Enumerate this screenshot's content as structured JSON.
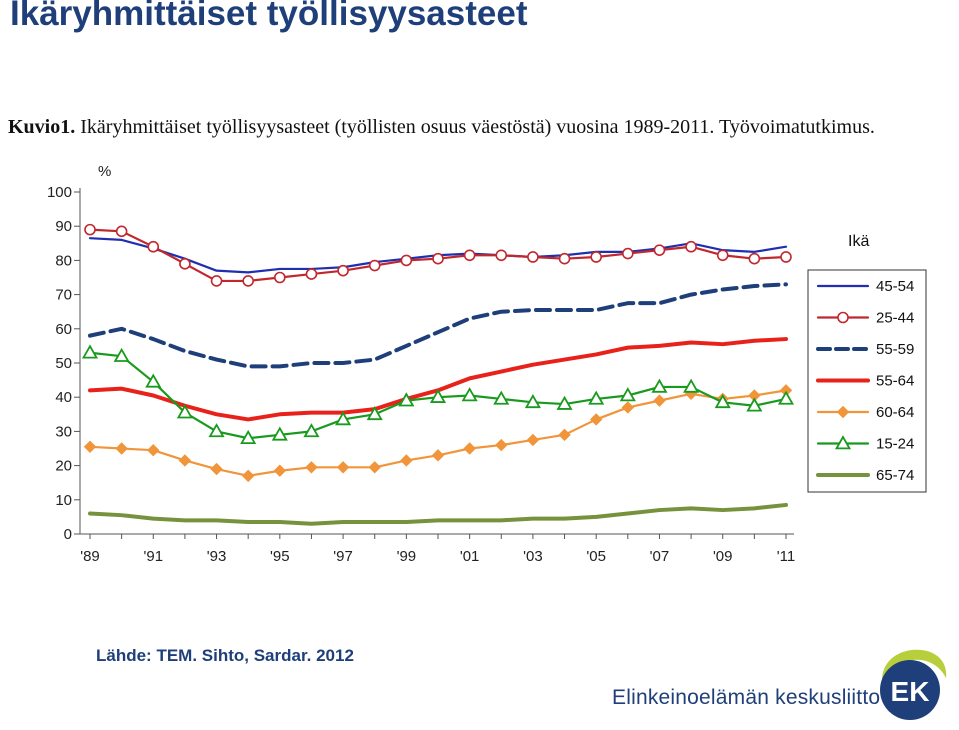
{
  "slide_title": "Ikäryhmittäiset työllisyysasteet",
  "caption": {
    "label": "Kuvio1.",
    "text": "Ikäryhmittäiset työllisyysasteet (työllisten osuus väestöstä) vuosina 1989-2011. Työvoimatutkimus."
  },
  "source_note": "Lähde: TEM. Sihto, Sardar. 2012",
  "brand": {
    "name": "Elinkeinoelämän keskusliitto",
    "logo_text": "EK"
  },
  "chart_data": {
    "type": "line",
    "ylabel": "%",
    "ylim": [
      0,
      100
    ],
    "yticks": [
      0,
      10,
      20,
      30,
      40,
      50,
      60,
      70,
      80,
      90,
      100
    ],
    "x": [
      1989,
      1990,
      1991,
      1992,
      1993,
      1994,
      1995,
      1996,
      1997,
      1998,
      1999,
      2000,
      2001,
      2002,
      2003,
      2004,
      2005,
      2006,
      2007,
      2008,
      2009,
      2010,
      2011
    ],
    "xtick_labels": [
      "'89",
      "'91",
      "'93",
      "'95",
      "'97",
      "'99",
      "'01",
      "'03",
      "'05",
      "'07",
      "'09",
      "'11"
    ],
    "grid": false,
    "legend_title": "Ikä",
    "legend_position": "right",
    "series": [
      {
        "name": "45-54",
        "color": "#1f2fb0",
        "style": "solid",
        "marker": "none",
        "values": [
          86.5,
          86,
          83.5,
          80.5,
          77,
          76.5,
          77.5,
          77.5,
          78,
          79.5,
          80.5,
          81.5,
          82,
          81.5,
          81,
          81.5,
          82.5,
          82.5,
          83.5,
          85,
          83,
          82.5,
          84
        ]
      },
      {
        "name": "25-44",
        "color": "#c0282d",
        "style": "solid",
        "marker": "circle",
        "values": [
          89,
          88.5,
          84,
          79,
          74,
          74,
          75,
          76,
          77,
          78.5,
          80,
          80.5,
          81.5,
          81.5,
          81,
          80.5,
          81,
          82,
          83,
          84,
          81.5,
          80.5,
          81
        ]
      },
      {
        "name": "55-59",
        "color": "#1f3f7a",
        "style": "dashed",
        "marker": "none",
        "values": [
          58,
          60,
          57,
          53.5,
          51,
          49,
          49,
          50,
          50,
          51,
          55,
          59,
          63,
          65,
          65.5,
          65.5,
          65.5,
          67.5,
          67.5,
          70,
          71.5,
          72.5,
          73
        ]
      },
      {
        "name": "55-64",
        "color": "#e8221a",
        "style": "solid-thick",
        "marker": "none",
        "values": [
          42,
          42.5,
          40.5,
          37.5,
          35,
          33.5,
          35,
          35.5,
          35.5,
          36.5,
          39.5,
          42,
          45.5,
          47.5,
          49.5,
          51,
          52.5,
          54.5,
          55,
          56,
          55.5,
          56.5,
          57
        ]
      },
      {
        "name": "60-64",
        "color": "#f0953a",
        "style": "solid",
        "marker": "diamond",
        "values": [
          25.5,
          25,
          24.5,
          21.5,
          19,
          17,
          18.5,
          19.5,
          19.5,
          19.5,
          21.5,
          23,
          25,
          26,
          27.5,
          29,
          33.5,
          37,
          39,
          41,
          39.5,
          40.5,
          42
        ]
      },
      {
        "name": "15-24",
        "color": "#199a1e",
        "style": "solid",
        "marker": "triangle",
        "values": [
          53,
          52,
          44.5,
          35.5,
          30,
          28,
          29,
          30,
          33.5,
          35,
          39,
          40,
          40.5,
          39.5,
          38.5,
          38,
          39.5,
          40.5,
          43,
          43,
          38.5,
          37.5,
          39.5
        ]
      },
      {
        "name": "65-74",
        "color": "#76923c",
        "style": "solid-thick",
        "marker": "none",
        "values": [
          6,
          5.5,
          4.5,
          4,
          4,
          3.5,
          3.5,
          3,
          3.5,
          3.5,
          3.5,
          4,
          4,
          4,
          4.5,
          4.5,
          5,
          6,
          7,
          7.5,
          7,
          7.5,
          8.5
        ]
      }
    ]
  }
}
